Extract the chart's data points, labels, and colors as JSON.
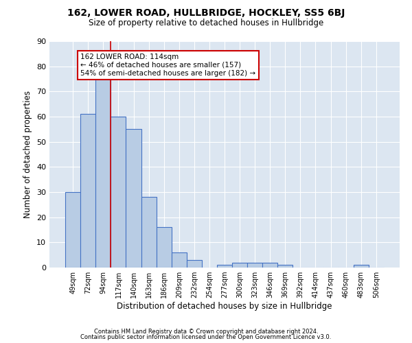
{
  "title": "162, LOWER ROAD, HULLBRIDGE, HOCKLEY, SS5 6BJ",
  "subtitle": "Size of property relative to detached houses in Hullbridge",
  "xlabel": "Distribution of detached houses by size in Hullbridge",
  "ylabel": "Number of detached properties",
  "bar_color": "#b8cce4",
  "bar_edge_color": "#4472c4",
  "bg_color": "#dce6f1",
  "grid_color": "#ffffff",
  "categories": [
    "49sqm",
    "72sqm",
    "94sqm",
    "117sqm",
    "140sqm",
    "163sqm",
    "186sqm",
    "209sqm",
    "232sqm",
    "254sqm",
    "277sqm",
    "300sqm",
    "323sqm",
    "346sqm",
    "369sqm",
    "392sqm",
    "414sqm",
    "437sqm",
    "460sqm",
    "483sqm",
    "506sqm"
  ],
  "values": [
    30,
    61,
    75,
    60,
    55,
    28,
    16,
    6,
    3,
    0,
    1,
    2,
    2,
    2,
    1,
    0,
    0,
    0,
    0,
    1,
    0
  ],
  "ylim": [
    0,
    90
  ],
  "yticks": [
    0,
    10,
    20,
    30,
    40,
    50,
    60,
    70,
    80,
    90
  ],
  "property_line_x": 2.5,
  "annotation_text": "162 LOWER ROAD: 114sqm\n← 46% of detached houses are smaller (157)\n54% of semi-detached houses are larger (182) →",
  "annotation_box_color": "#ffffff",
  "annotation_box_edge_color": "#cc0000",
  "property_line_color": "#cc0000",
  "footer_line1": "Contains HM Land Registry data © Crown copyright and database right 2024.",
  "footer_line2": "Contains public sector information licensed under the Open Government Licence v3.0."
}
